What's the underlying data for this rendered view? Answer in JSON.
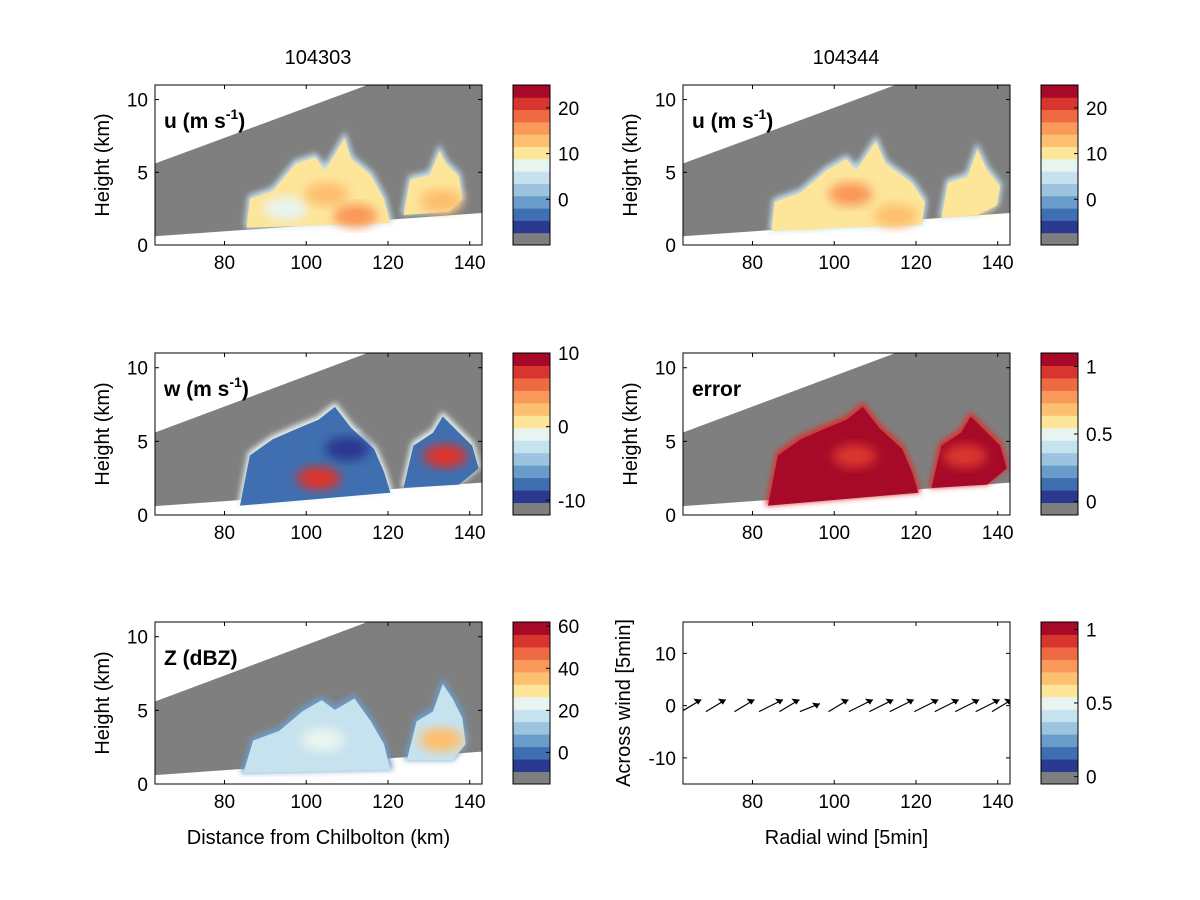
{
  "figure": {
    "column_titles": [
      "104303",
      "104344"
    ],
    "colorbar_palette": [
      "#7f7f7f",
      "#2b3990",
      "#3f6fb0",
      "#6a9ccb",
      "#9cc4de",
      "#c6e2ee",
      "#e8f4ef",
      "#fde59a",
      "#fdc070",
      "#f99a5a",
      "#ee6a45",
      "#d7352d",
      "#a70a28"
    ],
    "colors": {
      "background_grey": "#7f7f7f",
      "axis": "#000000"
    }
  },
  "chart_data": [
    {
      "type": "heatmap",
      "label": "u (m s-1)",
      "label_main": "u (m s",
      "label_sup": "-1",
      "label_close": ")",
      "ylabel": "Height (km)",
      "xlabel": "",
      "xlim": [
        63,
        143
      ],
      "ylim": [
        0,
        11
      ],
      "xticks": [
        80,
        100,
        120,
        140
      ],
      "yticks": [
        0,
        5,
        10
      ],
      "colorbar": {
        "ticks": [
          20,
          10,
          0
        ],
        "range": [
          -10,
          25
        ]
      },
      "data_rows": [
        {
          "x_km": 95,
          "z_km": 2.5,
          "value": 8
        },
        {
          "x_km": 105,
          "z_km": 3.5,
          "value": 14
        },
        {
          "x_km": 112,
          "z_km": 2.0,
          "value": 16
        },
        {
          "x_km": 133,
          "z_km": 3.0,
          "value": 12
        }
      ]
    },
    {
      "type": "heatmap",
      "label": "u (m s-1)",
      "label_main": "u (m s",
      "label_sup": "-1",
      "label_close": ")",
      "ylabel": "Height (km)",
      "xlabel": "",
      "xlim": [
        63,
        143
      ],
      "ylim": [
        0,
        11
      ],
      "xticks": [
        80,
        100,
        120,
        140
      ],
      "yticks": [
        0,
        5,
        10
      ],
      "colorbar": {
        "ticks": [
          20,
          10,
          0
        ],
        "range": [
          -10,
          25
        ]
      },
      "data_rows": [
        {
          "x_km": 93,
          "z_km": 2.0,
          "value": 9
        },
        {
          "x_km": 104,
          "z_km": 3.5,
          "value": 15
        },
        {
          "x_km": 115,
          "z_km": 2.0,
          "value": 14
        },
        {
          "x_km": 134,
          "z_km": 3.0,
          "value": 11
        }
      ]
    },
    {
      "type": "heatmap",
      "label": "w (m s-1)",
      "label_main": "w (m s",
      "label_sup": "-1",
      "label_close": ")",
      "ylabel": "Height (km)",
      "xlabel": "",
      "xlim": [
        63,
        143
      ],
      "ylim": [
        0,
        11
      ],
      "xticks": [
        80,
        100,
        120,
        140
      ],
      "yticks": [
        0,
        5,
        10
      ],
      "colorbar": {
        "ticks": [
          10,
          0,
          -10
        ],
        "range": [
          -12,
          10
        ]
      },
      "data_rows": [
        {
          "x_km": 103,
          "z_km": 2.5,
          "value": 8
        },
        {
          "x_km": 110,
          "z_km": 4.5,
          "value": -10
        },
        {
          "x_km": 134,
          "z_km": 4.0,
          "value": 9
        }
      ]
    },
    {
      "type": "heatmap",
      "label": "error",
      "label_main": "error",
      "label_sup": "",
      "label_close": "",
      "ylabel": "Height (km)",
      "xlabel": "",
      "xlim": [
        63,
        143
      ],
      "ylim": [
        0,
        11
      ],
      "xticks": [
        80,
        100,
        120,
        140
      ],
      "yticks": [
        0,
        5,
        10
      ],
      "colorbar": {
        "ticks": [
          1,
          0.5,
          0
        ],
        "range": [
          -0.1,
          1.1
        ]
      },
      "data_rows": [
        {
          "x_km": 105,
          "z_km": 4.0,
          "value": 1
        },
        {
          "x_km": 132,
          "z_km": 4.0,
          "value": 1
        }
      ]
    },
    {
      "type": "heatmap",
      "label": "Z (dBZ)",
      "label_main": "Z (dBZ)",
      "label_sup": "",
      "label_close": "",
      "ylabel": "Height (km)",
      "xlabel": "Distance from Chilbolton (km)",
      "xlim": [
        63,
        143
      ],
      "ylim": [
        0,
        11
      ],
      "xticks": [
        80,
        100,
        120,
        140
      ],
      "yticks": [
        0,
        5,
        10
      ],
      "colorbar": {
        "ticks": [
          60,
          40,
          20,
          0
        ],
        "range": [
          -15,
          62
        ]
      },
      "data_rows": [
        {
          "x_km": 104,
          "z_km": 3.0,
          "value": 25
        },
        {
          "x_km": 133,
          "z_km": 3.0,
          "value": 35
        }
      ]
    },
    {
      "type": "scatter",
      "label": "",
      "ylabel": "Across wind [5min]",
      "xlabel": "Radial wind [5min]",
      "xlim": [
        63,
        143
      ],
      "ylim": [
        -15,
        16
      ],
      "xticks": [
        80,
        100,
        120,
        140
      ],
      "yticks": [
        10,
        0,
        -10
      ],
      "colorbar": {
        "ticks": [
          1,
          0.5,
          0
        ],
        "range": [
          -0.05,
          1.05
        ]
      },
      "arrow_x": [
        67,
        73,
        80,
        86,
        91,
        96,
        103,
        108,
        113,
        118,
        124,
        129,
        134,
        139,
        143
      ],
      "arrow_y": [
        0,
        0,
        0,
        0,
        0,
        0,
        0,
        0,
        0,
        0,
        0,
        0,
        0,
        0,
        0
      ],
      "arrow_u": [
        5,
        5,
        5,
        6,
        5,
        5,
        5,
        6,
        6,
        6,
        6,
        6,
        6,
        6,
        5
      ],
      "arrow_v": [
        3,
        3,
        3,
        3,
        3,
        2,
        3,
        3,
        3,
        3,
        3,
        3,
        3,
        3,
        3
      ]
    }
  ]
}
